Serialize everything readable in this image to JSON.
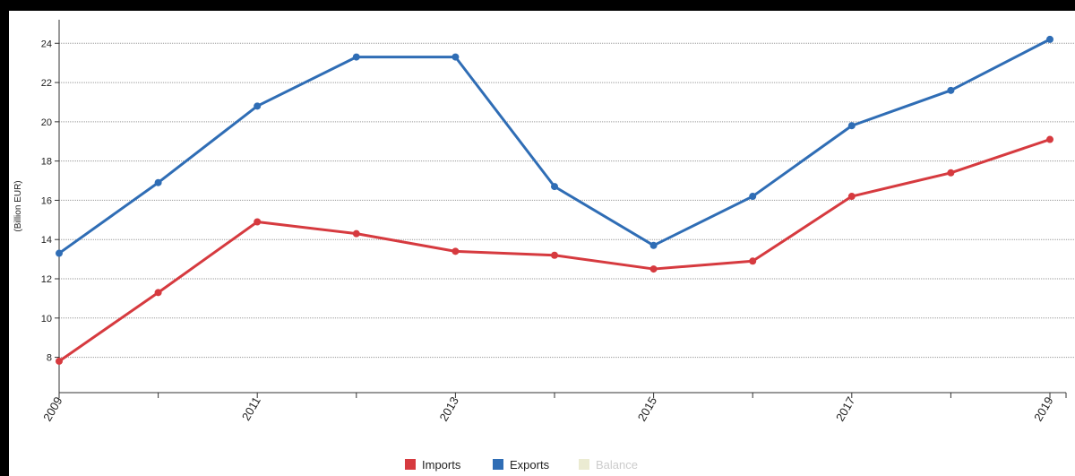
{
  "chart_data": {
    "type": "line",
    "ylabel": "(Billion EUR)",
    "xlabel": "",
    "title": "",
    "x": [
      2009,
      2010,
      2011,
      2012,
      2013,
      2014,
      2015,
      2016,
      2017,
      2018,
      2019
    ],
    "x_tick_labels": [
      "2009",
      "2011",
      "2013",
      "2015",
      "2017",
      "2019"
    ],
    "xlim": [
      2009,
      2019
    ],
    "ylim": [
      6.2,
      25.2
    ],
    "y_ticks": [
      8,
      10,
      12,
      14,
      16,
      18,
      20,
      22,
      24
    ],
    "grid": true,
    "legend_position": "bottom-center",
    "series": [
      {
        "name": "Imports",
        "color": "#d63a3f",
        "values": [
          7.8,
          11.3,
          14.9,
          14.3,
          13.4,
          13.2,
          12.5,
          12.9,
          16.2,
          17.4,
          19.1
        ]
      },
      {
        "name": "Exports",
        "color": "#2f6db5",
        "values": [
          13.3,
          16.9,
          20.8,
          23.3,
          23.3,
          16.7,
          13.7,
          16.2,
          19.8,
          21.6,
          24.2
        ]
      }
    ],
    "legend": [
      {
        "label": "Imports",
        "color": "#d63a3f",
        "enabled": true
      },
      {
        "label": "Exports",
        "color": "#2f6db5",
        "enabled": true
      },
      {
        "label": "Balance",
        "color": "#ebebd2",
        "enabled": false
      }
    ]
  }
}
